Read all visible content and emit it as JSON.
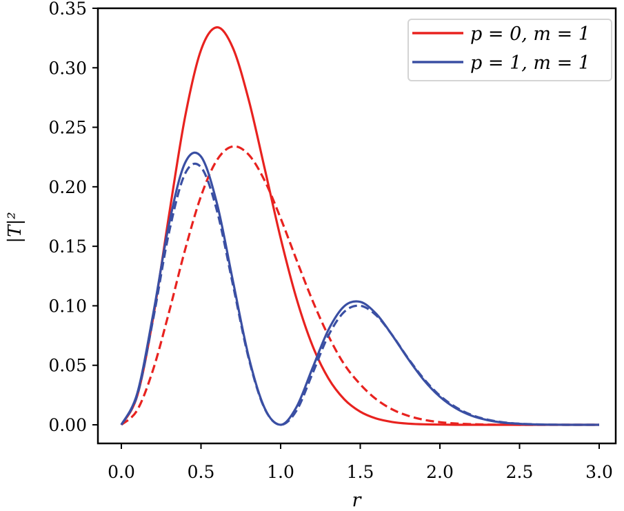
{
  "chart_data": {
    "type": "line",
    "title": "",
    "xlabel": "r",
    "ylabel": "|T|²",
    "xlim": [
      0.0,
      3.0
    ],
    "ylim": [
      0.0,
      0.35
    ],
    "xticks": [
      "0.0",
      "0.5",
      "1.0",
      "1.5",
      "2.0",
      "2.5",
      "3.0"
    ],
    "yticks": [
      "0.00",
      "0.05",
      "0.10",
      "0.15",
      "0.20",
      "0.25",
      "0.30",
      "0.35"
    ],
    "grid": false,
    "legend_position": "top-right",
    "legend": [
      {
        "label": "p = 0, m = 1",
        "color": "#e8221f"
      },
      {
        "label": "p = 1, m = 1",
        "color": "#3a4fa3"
      }
    ],
    "x": [
      0.0,
      0.1,
      0.2,
      0.3,
      0.4,
      0.5,
      0.6,
      0.7,
      0.8,
      0.9,
      1.0,
      1.1,
      1.2,
      1.3,
      1.4,
      1.5,
      1.6,
      1.7,
      1.8,
      1.9,
      2.0,
      2.1,
      2.2,
      2.3,
      2.4,
      2.5,
      2.6,
      2.7,
      2.8,
      2.9,
      3.0
    ],
    "series": [
      {
        "name": "p=0, m=1 (solid)",
        "color": "#e8221f",
        "style": "solid",
        "values": [
          0,
          0.0245,
          0.0903,
          0.1768,
          0.2587,
          0.3149,
          0.334,
          0.3168,
          0.2728,
          0.2153,
          0.1569,
          0.1059,
          0.0665,
          0.039,
          0.0214,
          0.011,
          0.0053,
          0.0024,
          0.001,
          0.0004,
          0.0002,
          0,
          0,
          0,
          0,
          0,
          0,
          0,
          0,
          0,
          0
        ]
      },
      {
        "name": "p=0, m=1 (dashed)",
        "color": "#e8221f",
        "style": "dashed",
        "values": [
          0,
          0.0124,
          0.0466,
          0.095,
          0.147,
          0.1921,
          0.2224,
          0.2339,
          0.2269,
          0.2051,
          0.1736,
          0.1385,
          0.1045,
          0.0747,
          0.0507,
          0.034,
          0.0215,
          0.013,
          0.0076,
          0.0042,
          0.0022,
          0.0011,
          0.0005,
          0.0002,
          0.0001,
          0,
          0,
          0,
          0,
          0,
          0
        ]
      },
      {
        "name": "p=1, m=1 (solid)",
        "color": "#3a4fa3",
        "style": "solid",
        "values": [
          0,
          0.0265,
          0.0933,
          0.1692,
          0.2201,
          0.2254,
          0.1861,
          0.1212,
          0.0569,
          0.0139,
          0,
          0.015,
          0.0476,
          0.0798,
          0.0997,
          0.1033,
          0.0933,
          0.0754,
          0.0555,
          0.0375,
          0.0236,
          0.0139,
          0.0076,
          0.0039,
          0.0018,
          0.0008,
          0.0003,
          0.0001,
          0,
          0,
          0
        ]
      },
      {
        "name": "p=1, m=1 (dashed)",
        "color": "#3a4fa3",
        "style": "dashed",
        "values": [
          0,
          0.025,
          0.089,
          0.162,
          0.211,
          0.2165,
          0.18,
          0.118,
          0.0555,
          0.0135,
          0,
          0.012,
          0.043,
          0.075,
          0.095,
          0.1,
          0.092,
          0.0755,
          0.056,
          0.0385,
          0.0245,
          0.0148,
          0.0082,
          0.0043,
          0.0021,
          0.0009,
          0.0004,
          0.0001,
          0,
          0,
          0
        ]
      }
    ]
  }
}
